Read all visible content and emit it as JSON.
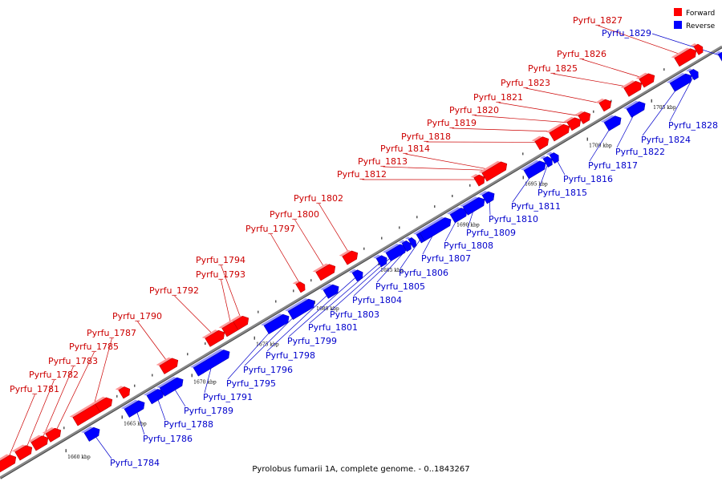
{
  "caption": "Pyrolobus fumarii 1A, complete genome. - 0..1843267",
  "legend": {
    "forward_label": "Forward",
    "reverse_label": "Reverse",
    "forward_color": "#ff0000",
    "reverse_color": "#0000ff"
  },
  "colors": {
    "forward_label": "#cc0000",
    "reverse_label": "#0000cc",
    "backbone": "#888888"
  },
  "scale_ticks": [
    "1660 kbp",
    "1665 kbp",
    "1670 kbp",
    "1675 kbp",
    "1680 kbp",
    "1685 kbp",
    "1690 kbp",
    "1695 kbp",
    "1700 kbp",
    "1705 kbp"
  ],
  "forward_genes": [
    "Pyrfu_1781",
    "Pyrfu_1782",
    "Pyrfu_1783",
    "Pyrfu_1785",
    "Pyrfu_1787",
    "Pyrfu_1790",
    "Pyrfu_1792",
    "Pyrfu_1793",
    "Pyrfu_1794",
    "Pyrfu_1797",
    "Pyrfu_1800",
    "Pyrfu_1802",
    "Pyrfu_1812",
    "Pyrfu_1813",
    "Pyrfu_1814",
    "Pyrfu_1818",
    "Pyrfu_1819",
    "Pyrfu_1820",
    "Pyrfu_1821",
    "Pyrfu_1823",
    "Pyrfu_1825",
    "Pyrfu_1826",
    "Pyrfu_1827"
  ],
  "reverse_genes": [
    "Pyrfu_1784",
    "Pyrfu_1786",
    "Pyrfu_1788",
    "Pyrfu_1789",
    "Pyrfu_1791",
    "Pyrfu_1795",
    "Pyrfu_1796",
    "Pyrfu_1798",
    "Pyrfu_1799",
    "Pyrfu_1801",
    "Pyrfu_1803",
    "Pyrfu_1804",
    "Pyrfu_1805",
    "Pyrfu_1806",
    "Pyrfu_1807",
    "Pyrfu_1808",
    "Pyrfu_1809",
    "Pyrfu_1810",
    "Pyrfu_1811",
    "Pyrfu_1815",
    "Pyrfu_1816",
    "Pyrfu_1817",
    "Pyrfu_1822",
    "Pyrfu_1824",
    "Pyrfu_1828",
    "Pyrfu_1829"
  ]
}
